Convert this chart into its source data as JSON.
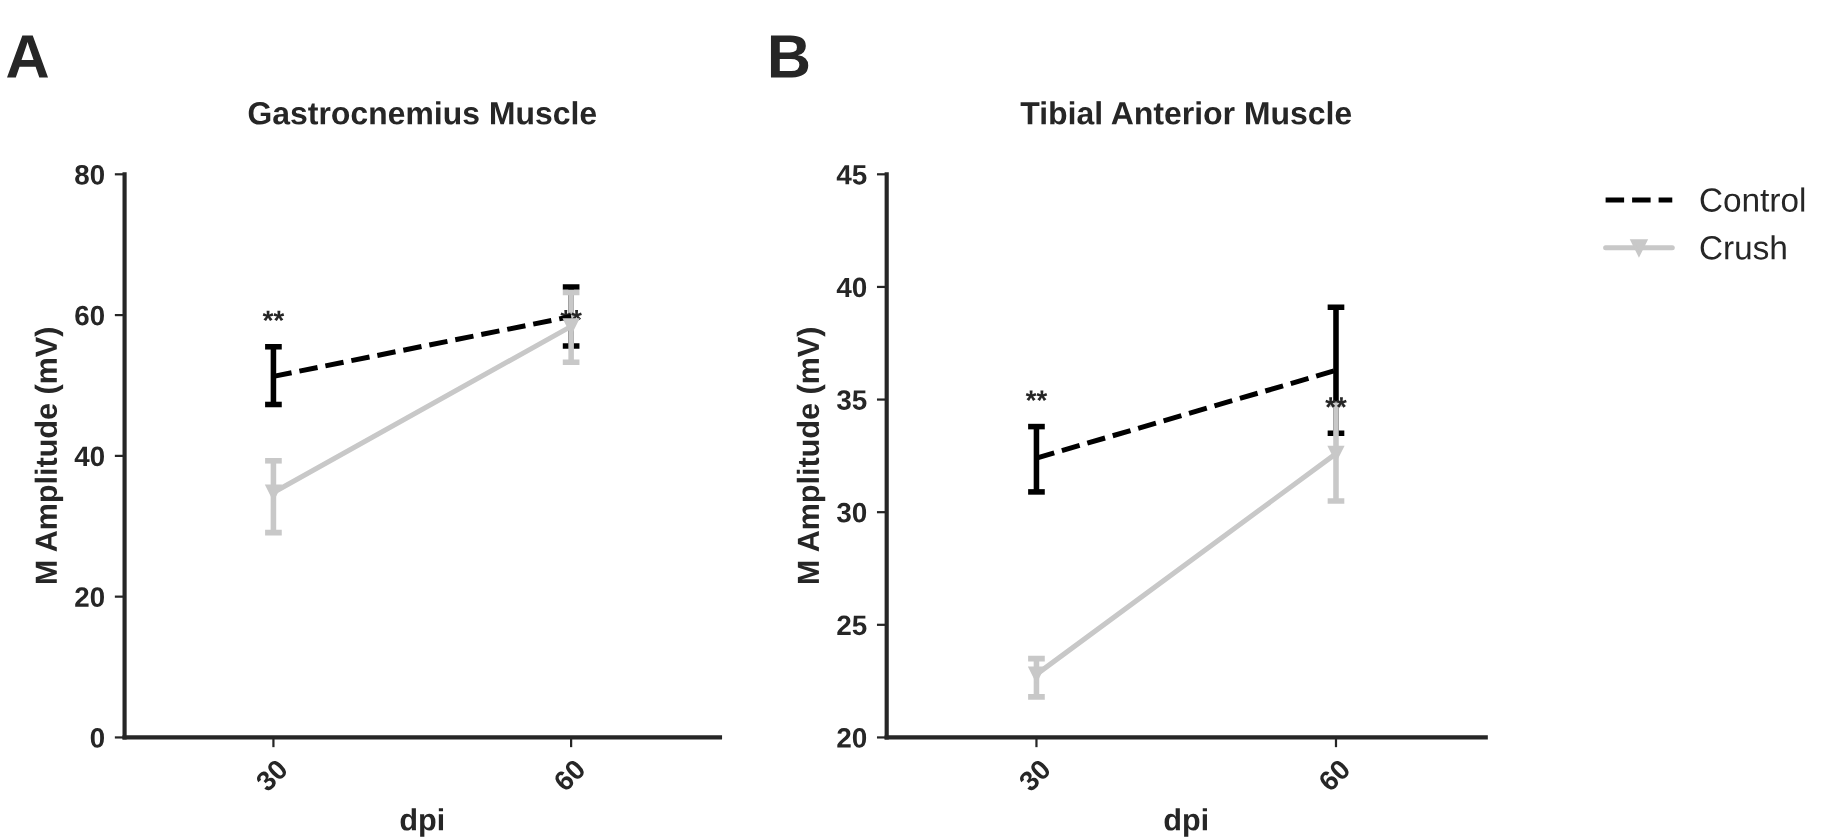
{
  "chart_data": [
    {
      "type": "line",
      "title": "Gastrocnemius Muscle",
      "xlabel": "dpi",
      "ylabel": "M Amplitude (mV)",
      "categories": [
        "30",
        "60"
      ],
      "ylim": [
        0,
        80
      ],
      "yticks": [
        0,
        20,
        40,
        60,
        80
      ],
      "series": [
        {
          "color": "#000000",
          "values": [
            51.3,
            59.8
          ],
          "errors": [
            [
              47.3,
              55.5
            ],
            [
              55.6,
              64
            ]
          ],
          "line_style": "dashed",
          "marker": "none"
        },
        {
          "color": "#c8c8c8",
          "values": [
            34.8,
            58.4
          ],
          "errors": [
            [
              29.1,
              39.3
            ],
            [
              53.3,
              63.2
            ]
          ],
          "line_style": "solid",
          "marker": "triangle"
        }
      ],
      "annotations": [
        "A",
        {
          "text": "**",
          "x": "30",
          "y": 55.5
        },
        {
          "text": "**",
          "x": "60",
          "y": 55.6
        }
      ]
    },
    {
      "type": "line",
      "title": "Tibial Anterior Muscle",
      "xlabel": "dpi",
      "ylabel": "M Amplitude (mV)",
      "categories": [
        "30",
        "60"
      ],
      "ylim": [
        20,
        45
      ],
      "yticks": [
        20,
        25,
        30,
        35,
        40,
        45
      ],
      "legend": "top right",
      "series": [
        {
          "name": "Control",
          "color": "#000000",
          "values": [
            32.4,
            36.3
          ],
          "errors": [
            [
              30.9,
              33.8
            ],
            [
              33.5,
              39.1
            ]
          ],
          "line_style": "dashed",
          "marker": "none"
        },
        {
          "name": "Crush",
          "color": "#c8c8c8",
          "values": [
            22.8,
            32.6
          ],
          "errors": [
            [
              21.8,
              23.5
            ],
            [
              30.5,
              34.8
            ]
          ],
          "line_style": "solid",
          "marker": "triangle"
        }
      ],
      "annotations": [
        "B",
        {
          "text": "**",
          "x": "30",
          "y": 33.8
        },
        {
          "text": "**",
          "x": "60",
          "y": 33.5
        }
      ]
    }
  ]
}
